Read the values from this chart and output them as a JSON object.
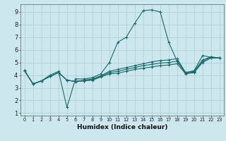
{
  "background_color": "#cce8ee",
  "grid_color": "#aacccc",
  "line_color": "#1a6b6b",
  "marker": "+",
  "xlabel": "Humidex (Indice chaleur)",
  "ylim": [
    0.8,
    9.6
  ],
  "xlim": [
    -0.5,
    23.5
  ],
  "yticks": [
    1,
    2,
    3,
    4,
    5,
    6,
    7,
    8,
    9
  ],
  "xticks": [
    0,
    1,
    2,
    3,
    4,
    5,
    6,
    7,
    8,
    9,
    10,
    11,
    12,
    13,
    14,
    15,
    16,
    17,
    18,
    19,
    20,
    21,
    22,
    23
  ],
  "lines": [
    [
      0,
      4.35,
      1,
      3.3,
      2,
      3.55,
      3,
      4.0,
      4,
      4.3,
      5,
      1.45,
      6,
      3.7,
      7,
      3.7,
      8,
      3.8,
      9,
      4.1,
      10,
      5.0,
      11,
      6.6,
      12,
      7.0,
      13,
      8.1,
      14,
      9.1,
      15,
      9.15,
      16,
      9.0,
      17,
      6.6,
      18,
      5.1,
      19,
      4.2,
      20,
      4.35,
      21,
      5.55,
      22,
      5.4,
      23,
      5.35
    ],
    [
      0,
      4.35,
      1,
      3.3,
      2,
      3.55,
      3,
      3.9,
      4,
      4.2,
      5,
      3.6,
      6,
      3.5,
      7,
      3.55,
      8,
      3.6,
      9,
      3.85,
      10,
      4.1,
      11,
      4.15,
      12,
      4.3,
      13,
      4.45,
      14,
      4.55,
      15,
      4.65,
      16,
      4.75,
      17,
      4.8,
      18,
      4.9,
      19,
      4.1,
      20,
      4.2,
      21,
      5.0,
      22,
      5.35,
      23,
      5.35
    ],
    [
      0,
      4.35,
      1,
      3.3,
      2,
      3.55,
      3,
      3.9,
      4,
      4.2,
      5,
      3.6,
      6,
      3.5,
      7,
      3.55,
      8,
      3.65,
      9,
      3.9,
      10,
      4.2,
      11,
      4.3,
      12,
      4.45,
      13,
      4.6,
      14,
      4.75,
      15,
      4.85,
      16,
      4.95,
      17,
      5.0,
      18,
      5.1,
      19,
      4.15,
      20,
      4.25,
      21,
      5.1,
      22,
      5.4,
      23,
      5.35
    ],
    [
      0,
      4.35,
      1,
      3.3,
      2,
      3.55,
      3,
      3.9,
      4,
      4.2,
      5,
      3.6,
      6,
      3.5,
      7,
      3.6,
      8,
      3.7,
      9,
      3.95,
      10,
      4.3,
      11,
      4.45,
      12,
      4.6,
      13,
      4.75,
      14,
      4.9,
      15,
      5.05,
      16,
      5.15,
      17,
      5.2,
      18,
      5.3,
      19,
      4.2,
      20,
      4.3,
      21,
      5.2,
      22,
      5.45,
      23,
      5.35
    ]
  ],
  "xlabel_fontsize": 6.5,
  "xlabel_fontweight": "bold",
  "ytick_fontsize": 6,
  "xtick_fontsize": 4.8
}
